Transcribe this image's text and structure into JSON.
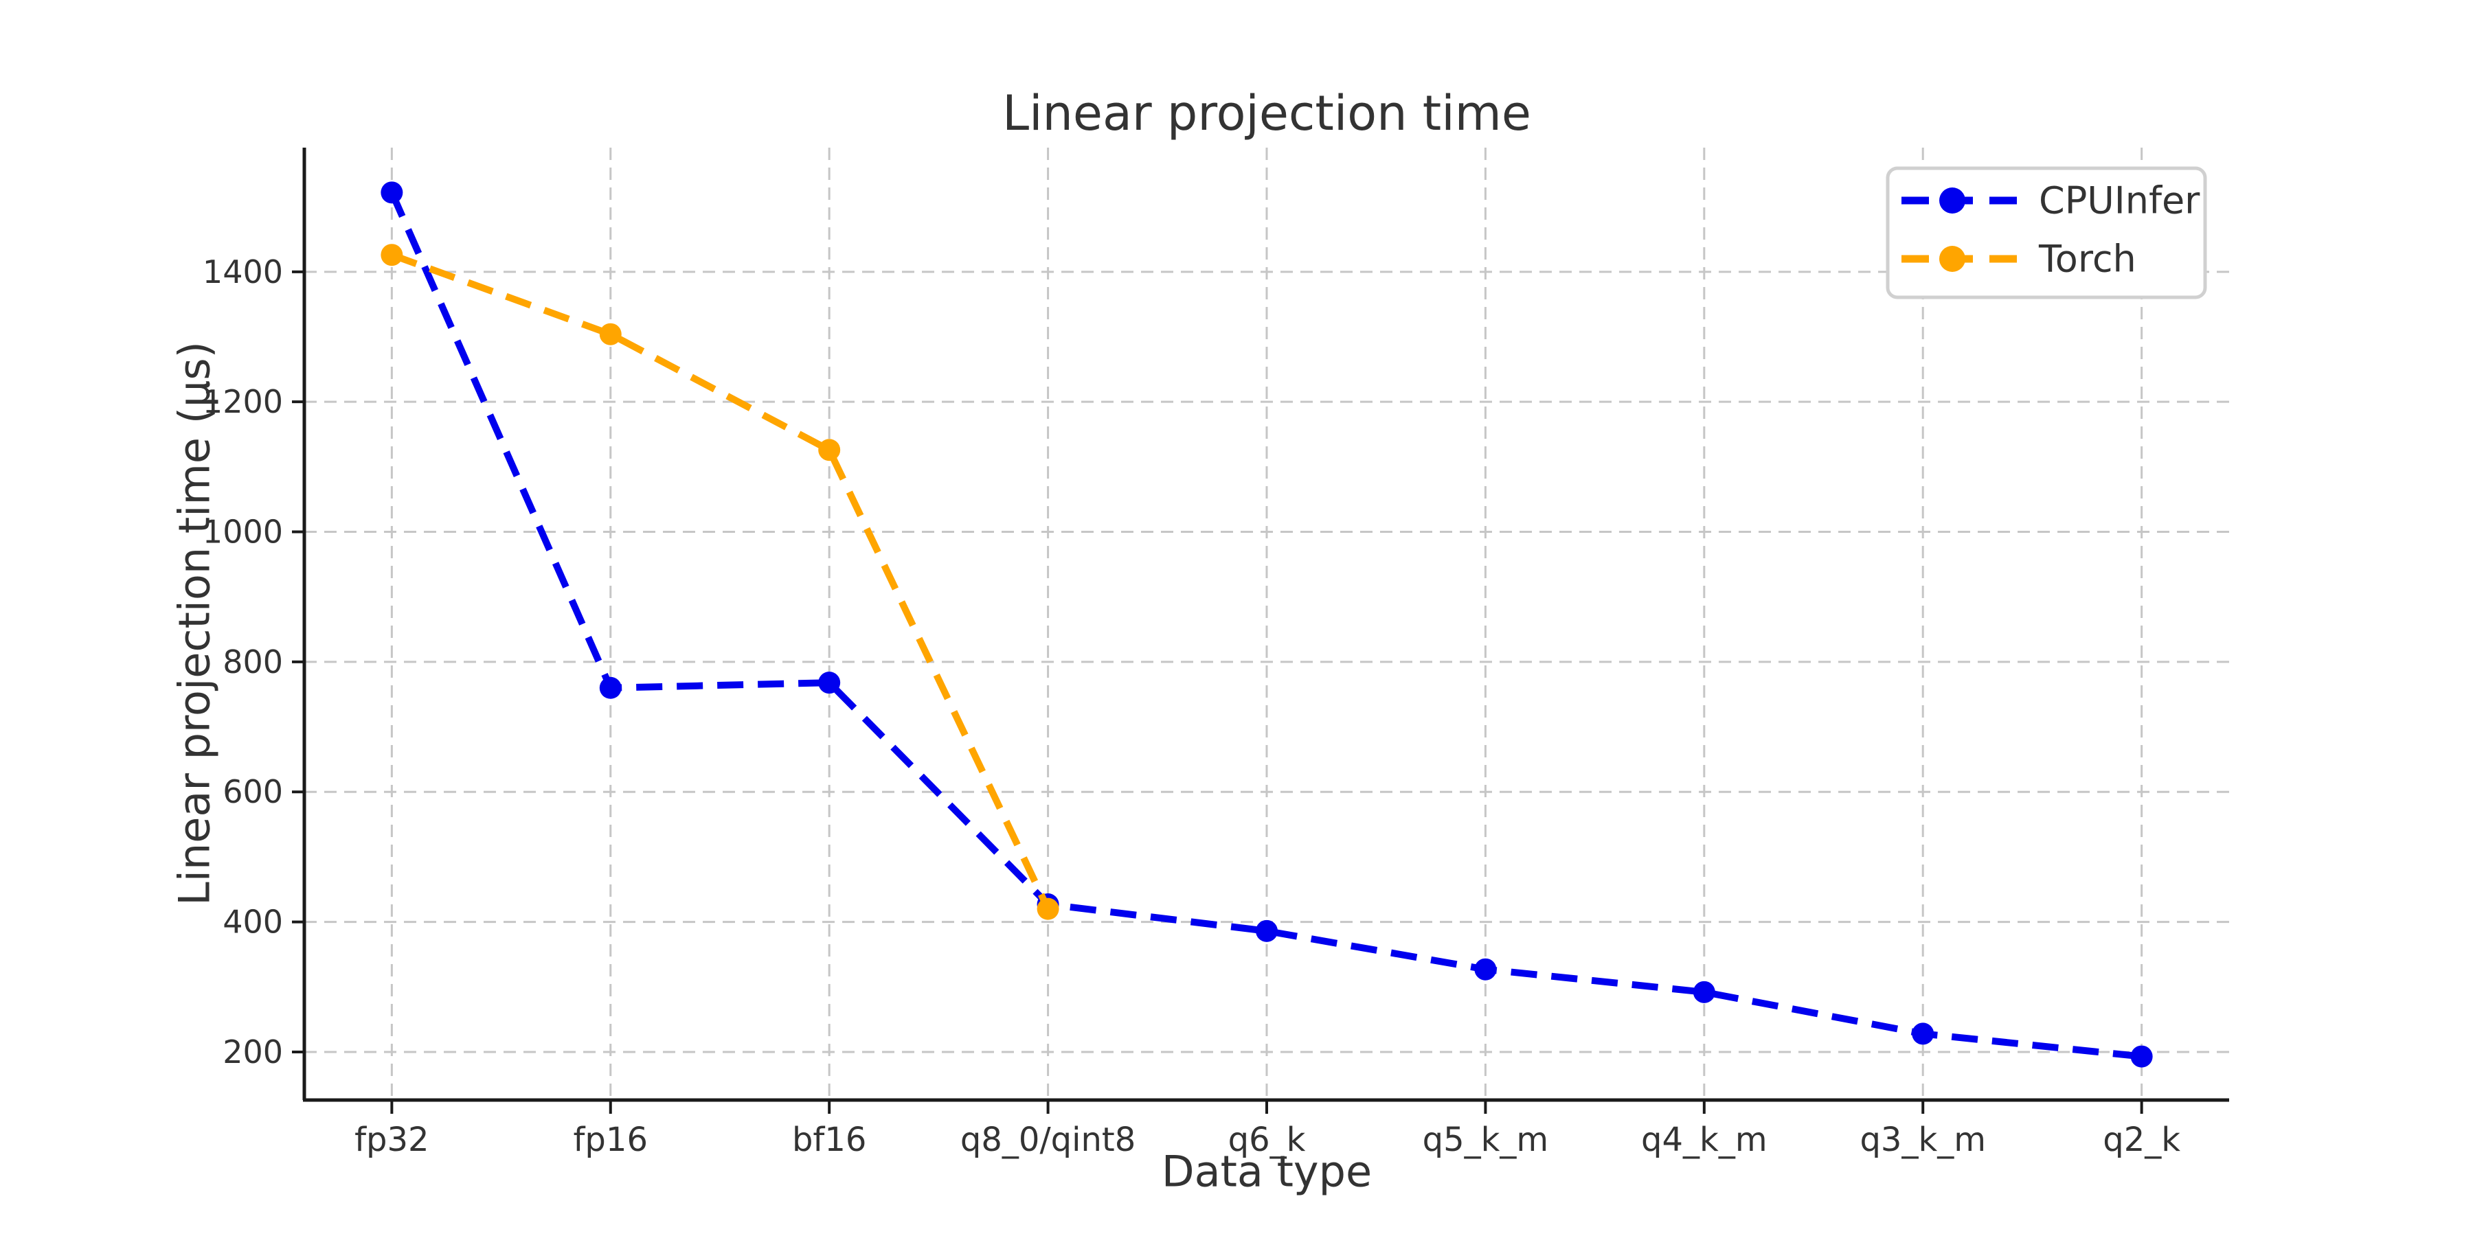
{
  "chart_data": {
    "type": "line",
    "title": "Linear projection time",
    "xlabel": "Data type",
    "ylabel": "Linear projection time (μs)",
    "categories": [
      "fp32",
      "fp16",
      "bf16",
      "q8_0/qint8",
      "q6_k",
      "q5_k_m",
      "q4_k_m",
      "q3_k_m",
      "q2_k"
    ],
    "series": [
      {
        "name": "CPUInfer",
        "color": "#0000ee",
        "linestyle": "dashed",
        "marker": "circle",
        "values": [
          1522,
          760,
          768,
          427,
          386,
          327,
          292,
          228,
          193
        ]
      },
      {
        "name": "Torch",
        "color": "#ffa500",
        "linestyle": "dashed",
        "marker": "circle",
        "values": [
          1426,
          1304,
          1126,
          420
        ]
      }
    ],
    "yticks": [
      200,
      400,
      600,
      800,
      1000,
      1200,
      1400
    ],
    "ylim": [
      126,
      1591
    ],
    "grid": {
      "visible": true,
      "style": "dashed",
      "color": "#c6c6c6"
    },
    "legend": {
      "position": "upper right",
      "entries": [
        "CPUInfer",
        "Torch"
      ]
    }
  },
  "style_colors": {
    "axis": "#1a1a1a",
    "text": "#333333",
    "legend_border": "#d0d0d0",
    "background": "#ffffff"
  }
}
